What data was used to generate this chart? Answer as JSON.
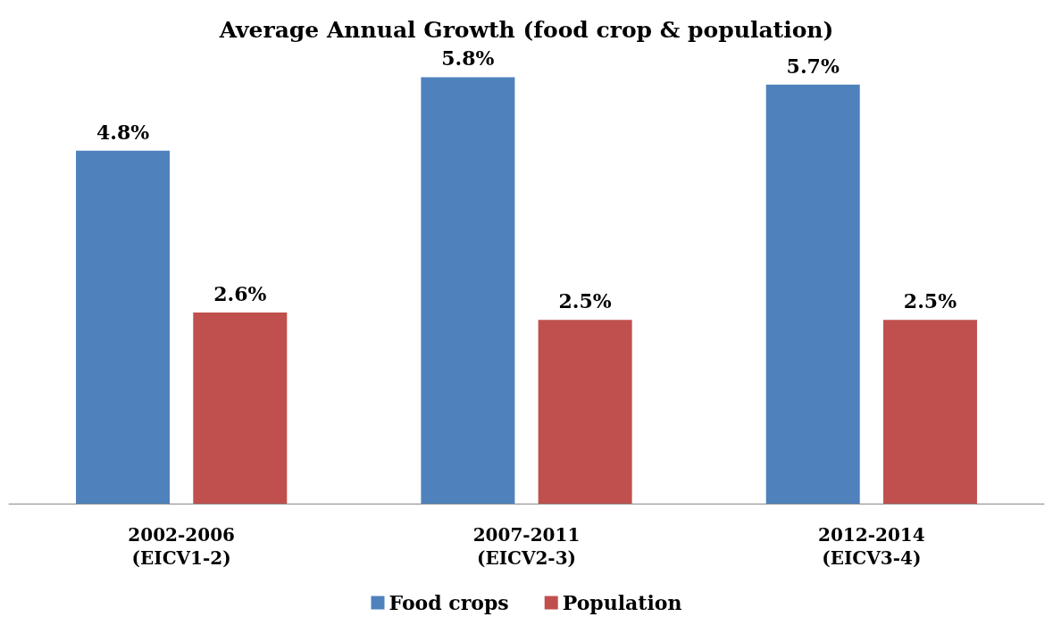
{
  "chart_data": {
    "type": "bar",
    "title": "Average Annual Growth (food crop & population)",
    "categories": [
      "2002-2006\n(EICV1-2)",
      "2007-2011\n(EICV2-3)",
      "2012-2014\n(EICV3-4)"
    ],
    "series": [
      {
        "name": "Food crops",
        "color": "#4f81bd",
        "values": [
          4.8,
          5.8,
          5.7
        ],
        "value_labels": [
          "4.8%",
          "5.8%",
          "5.7%"
        ]
      },
      {
        "name": "Population",
        "color": "#c0504d",
        "values": [
          2.6,
          2.5,
          2.5
        ],
        "value_labels": [
          "2.6%",
          "2.5%",
          "2.5%"
        ]
      }
    ],
    "legend": "bottom",
    "grid": false
  }
}
